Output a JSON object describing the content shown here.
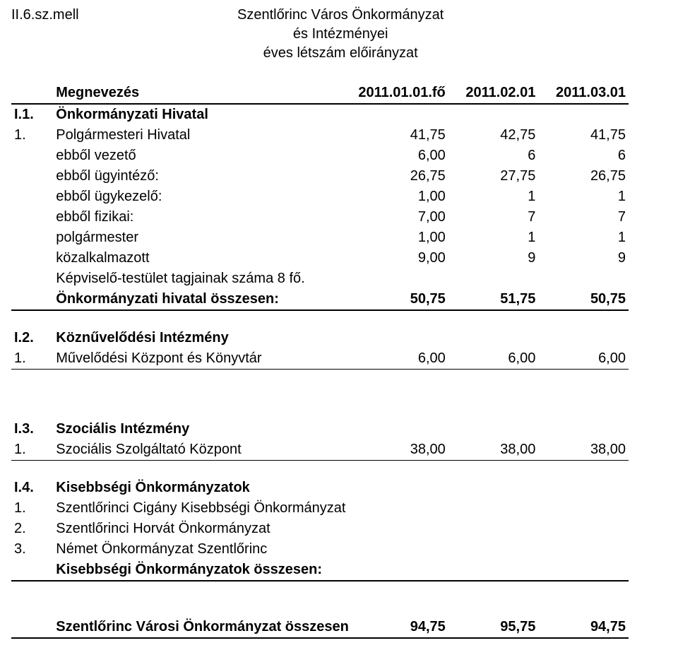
{
  "ref": "II.6.sz.mell",
  "title": {
    "line1": "Szentlőrinc Város Önkormányzat",
    "line2": "és Intézményei",
    "line3": "éves létszám előirányzat"
  },
  "header": {
    "name": "Megnevezés",
    "c1": "2011.01.01.fő",
    "c2": "2011.02.01",
    "c3": "2011.03.01"
  },
  "sections": {
    "I1": {
      "idx": "I.1.",
      "name": "Önkormányzati Hivatal"
    },
    "polg": {
      "idx": "1.",
      "name": "Polgármesteri Hivatal",
      "v1": "41,75",
      "v2": "42,75",
      "v3": "41,75",
      "rows": [
        {
          "name": "ebből vezető",
          "v1": "6,00",
          "v2": "6",
          "v3": "6"
        },
        {
          "name": "ebből ügyintéző:",
          "v1": "26,75",
          "v2": "27,75",
          "v3": "26,75"
        },
        {
          "name": "ebből ügykezelő:",
          "v1": "1,00",
          "v2": "1",
          "v3": "1"
        },
        {
          "name": "ebből fizikai:",
          "v1": "7,00",
          "v2": "7",
          "v3": "7"
        },
        {
          "name": "polgármester",
          "v1": "1,00",
          "v2": "1",
          "v3": "1"
        },
        {
          "name": "közalkalmazott",
          "v1": "9,00",
          "v2": "9",
          "v3": "9"
        }
      ],
      "note": "Képviselő-testület tagjainak száma 8 fő.",
      "total": {
        "name": "Önkormányzati hivatal összesen:",
        "v1": "50,75",
        "v2": "51,75",
        "v3": "50,75"
      }
    },
    "I2": {
      "idx": "I.2.",
      "name": "Köznűvelődési Intézmény",
      "row": {
        "idx": "1.",
        "name": "Művelődési Központ és Könyvtár",
        "v1": "6,00",
        "v2": "6,00",
        "v3": "6,00"
      }
    },
    "I3": {
      "idx": "I.3.",
      "name": "Szociális Intézmény",
      "row": {
        "idx": "1.",
        "name": "Szociális Szolgáltató Központ",
        "v1": "38,00",
        "v2": "38,00",
        "v3": "38,00"
      }
    },
    "I4": {
      "idx": "I.4.",
      "name": "Kisebbségi Önkormányzatok",
      "rows": [
        {
          "idx": "1.",
          "name": "Szentlőrinci Cigány Kisebbségi Önkormányzat"
        },
        {
          "idx": "2.",
          "name": "Szentlőrinci Horvát Önkormányzat"
        },
        {
          "idx": "3.",
          "name": "Német Önkormányzat Szentlőrinc"
        }
      ],
      "total": "Kisebbségi Önkormányzatok összesen:"
    },
    "grand": {
      "name": "Szentlőrinc Városi Önkormányzat összesen",
      "v1": "94,75",
      "v2": "95,75",
      "v3": "94,75"
    }
  }
}
